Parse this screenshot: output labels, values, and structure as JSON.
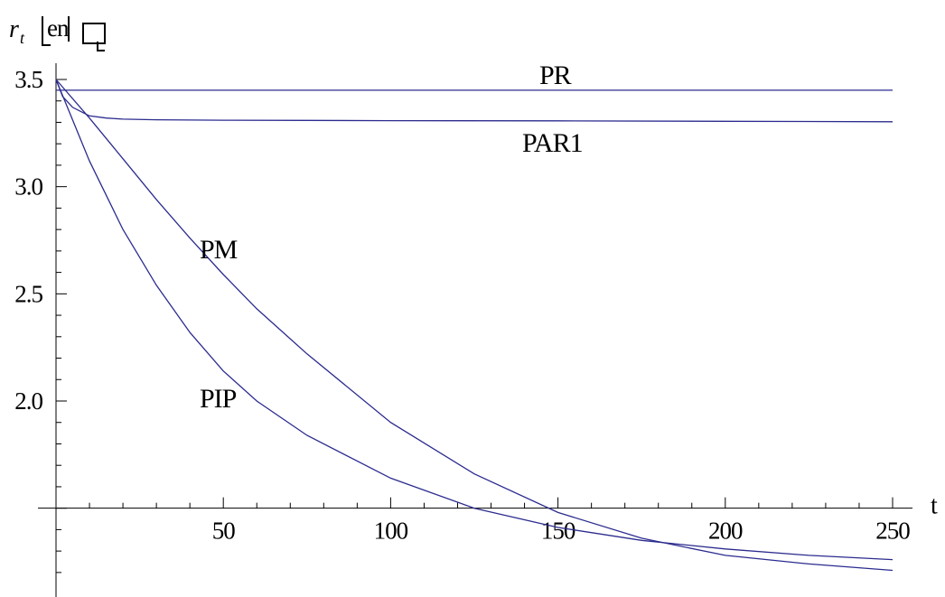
{
  "chart_data": {
    "type": "line",
    "title": "",
    "xlabel": "t",
    "ylabel_main": "r",
    "ylabel_sub": "t",
    "ylabel_bracket_text": "en",
    "xlim": [
      0,
      260
    ],
    "ylim": [
      1.2,
      3.6
    ],
    "axis_origin_y": 1.5,
    "x_ticks": [
      50,
      100,
      150,
      200,
      250
    ],
    "x_tick_labels": [
      "50",
      "100",
      "150",
      "200",
      "250"
    ],
    "y_ticks": [
      2.0,
      2.5,
      3.0,
      3.5
    ],
    "y_tick_labels": [
      "2.0",
      "2.5",
      "3.0",
      "3.5"
    ],
    "grid": false,
    "line_color": "#2b2b8f",
    "series": [
      {
        "name": "PR",
        "label_at": [
          150,
          3.45
        ],
        "x": [
          0,
          250
        ],
        "y": [
          3.45,
          3.45
        ]
      },
      {
        "name": "PAR1",
        "label_at": [
          150,
          3.25
        ],
        "x": [
          0,
          2,
          5,
          10,
          15,
          20,
          30,
          50,
          75,
          100,
          150,
          200,
          250
        ],
        "y": [
          3.5,
          3.42,
          3.37,
          3.33,
          3.32,
          3.315,
          3.312,
          3.31,
          3.309,
          3.308,
          3.307,
          3.305,
          3.303
        ]
      },
      {
        "name": "PM",
        "label_at": [
          44,
          2.68
        ],
        "x": [
          0,
          10,
          20,
          30,
          40,
          50,
          60,
          75,
          100,
          125,
          150,
          175,
          200,
          225,
          250
        ],
        "y": [
          3.5,
          3.32,
          3.13,
          2.94,
          2.76,
          2.59,
          2.43,
          2.22,
          1.9,
          1.66,
          1.48,
          1.36,
          1.28,
          1.24,
          1.21
        ]
      },
      {
        "name": "PIP",
        "label_at": [
          44,
          1.98
        ],
        "x": [
          0,
          10,
          20,
          30,
          40,
          50,
          60,
          75,
          100,
          125,
          150,
          175,
          200,
          225,
          250
        ],
        "y": [
          3.5,
          3.12,
          2.8,
          2.54,
          2.32,
          2.14,
          2.0,
          1.84,
          1.64,
          1.5,
          1.41,
          1.35,
          1.31,
          1.28,
          1.26
        ]
      }
    ]
  }
}
